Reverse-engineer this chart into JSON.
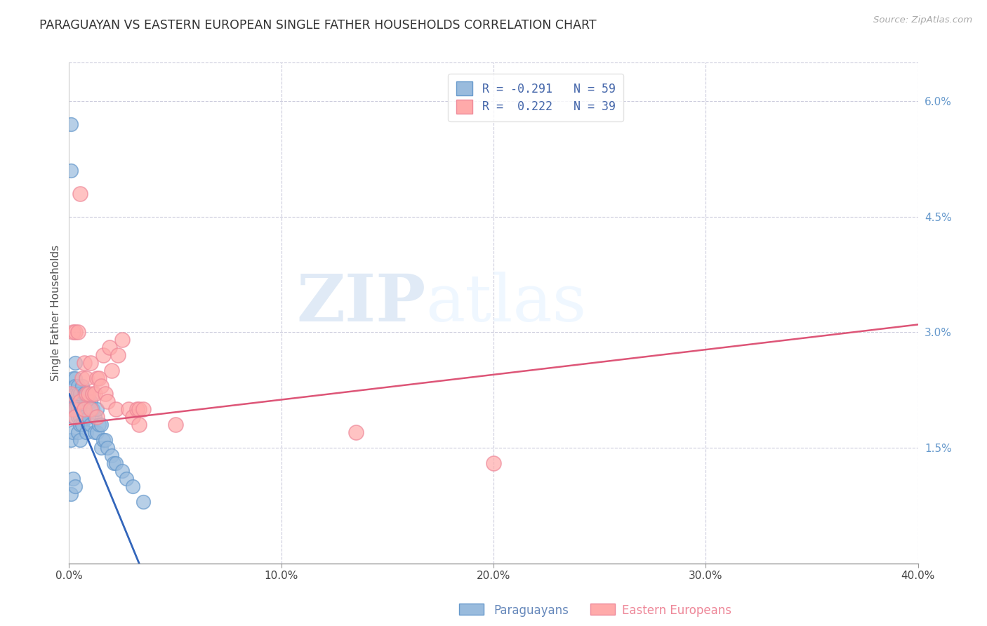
{
  "title": "PARAGUAYAN VS EASTERN EUROPEAN SINGLE FATHER HOUSEHOLDS CORRELATION CHART",
  "source": "Source: ZipAtlas.com",
  "ylabel": "Single Father Households",
  "xmin": 0.0,
  "xmax": 0.4,
  "ymin": 0.0,
  "ymax": 0.065,
  "xticks": [
    0.0,
    0.1,
    0.2,
    0.3,
    0.4
  ],
  "xtick_labels": [
    "0.0%",
    "10.0%",
    "20.0%",
    "30.0%",
    "40.0%"
  ],
  "yticks_right": [
    0.015,
    0.03,
    0.045,
    0.06
  ],
  "ytick_labels_right": [
    "1.5%",
    "3.0%",
    "4.5%",
    "6.0%"
  ],
  "legend_blue_label_r": "R = -0.291",
  "legend_blue_label_n": "N = 59",
  "legend_pink_label_r": "R =  0.222",
  "legend_pink_label_n": "N = 39",
  "blue_color": "#99BBDD",
  "blue_edge_color": "#6699CC",
  "pink_color": "#FFAAAA",
  "pink_edge_color": "#EE8899",
  "blue_line_color": "#3366BB",
  "pink_line_color": "#DD5577",
  "watermark_zip": "ZIP",
  "watermark_atlas": "atlas",
  "blue_r": -0.291,
  "blue_n": 59,
  "pink_r": 0.222,
  "pink_n": 39,
  "blue_line_x0": 0.0,
  "blue_line_y0": 0.022,
  "blue_line_x1": 0.033,
  "blue_line_y1": 0.0,
  "pink_line_x0": 0.0,
  "pink_line_y0": 0.018,
  "pink_line_x1": 0.4,
  "pink_line_y1": 0.031,
  "blue_points_x": [
    0.001,
    0.001,
    0.001,
    0.001,
    0.001,
    0.002,
    0.002,
    0.002,
    0.002,
    0.002,
    0.002,
    0.002,
    0.002,
    0.003,
    0.003,
    0.003,
    0.003,
    0.003,
    0.003,
    0.003,
    0.004,
    0.004,
    0.004,
    0.004,
    0.004,
    0.005,
    0.005,
    0.005,
    0.005,
    0.005,
    0.006,
    0.006,
    0.006,
    0.007,
    0.007,
    0.008,
    0.008,
    0.009,
    0.009,
    0.01,
    0.01,
    0.011,
    0.012,
    0.012,
    0.013,
    0.013,
    0.014,
    0.015,
    0.015,
    0.016,
    0.017,
    0.018,
    0.02,
    0.021,
    0.022,
    0.025,
    0.027,
    0.03,
    0.035
  ],
  "blue_points_y": [
    0.057,
    0.051,
    0.02,
    0.016,
    0.009,
    0.024,
    0.022,
    0.021,
    0.021,
    0.02,
    0.019,
    0.017,
    0.011,
    0.026,
    0.024,
    0.023,
    0.022,
    0.021,
    0.02,
    0.01,
    0.023,
    0.022,
    0.02,
    0.019,
    0.017,
    0.022,
    0.02,
    0.019,
    0.018,
    0.016,
    0.023,
    0.02,
    0.018,
    0.022,
    0.019,
    0.022,
    0.017,
    0.021,
    0.019,
    0.021,
    0.018,
    0.02,
    0.019,
    0.017,
    0.02,
    0.017,
    0.018,
    0.018,
    0.015,
    0.016,
    0.016,
    0.015,
    0.014,
    0.013,
    0.013,
    0.012,
    0.011,
    0.01,
    0.008
  ],
  "pink_points_x": [
    0.001,
    0.002,
    0.002,
    0.003,
    0.003,
    0.004,
    0.005,
    0.005,
    0.006,
    0.007,
    0.007,
    0.008,
    0.008,
    0.009,
    0.01,
    0.01,
    0.011,
    0.012,
    0.013,
    0.013,
    0.014,
    0.015,
    0.016,
    0.017,
    0.018,
    0.019,
    0.02,
    0.022,
    0.023,
    0.025,
    0.028,
    0.03,
    0.032,
    0.033,
    0.033,
    0.035,
    0.05,
    0.135,
    0.2
  ],
  "pink_points_y": [
    0.022,
    0.03,
    0.02,
    0.03,
    0.019,
    0.03,
    0.048,
    0.021,
    0.024,
    0.026,
    0.02,
    0.024,
    0.022,
    0.022,
    0.026,
    0.02,
    0.022,
    0.022,
    0.024,
    0.019,
    0.024,
    0.023,
    0.027,
    0.022,
    0.021,
    0.028,
    0.025,
    0.02,
    0.027,
    0.029,
    0.02,
    0.019,
    0.02,
    0.02,
    0.018,
    0.02,
    0.018,
    0.017,
    0.013
  ]
}
